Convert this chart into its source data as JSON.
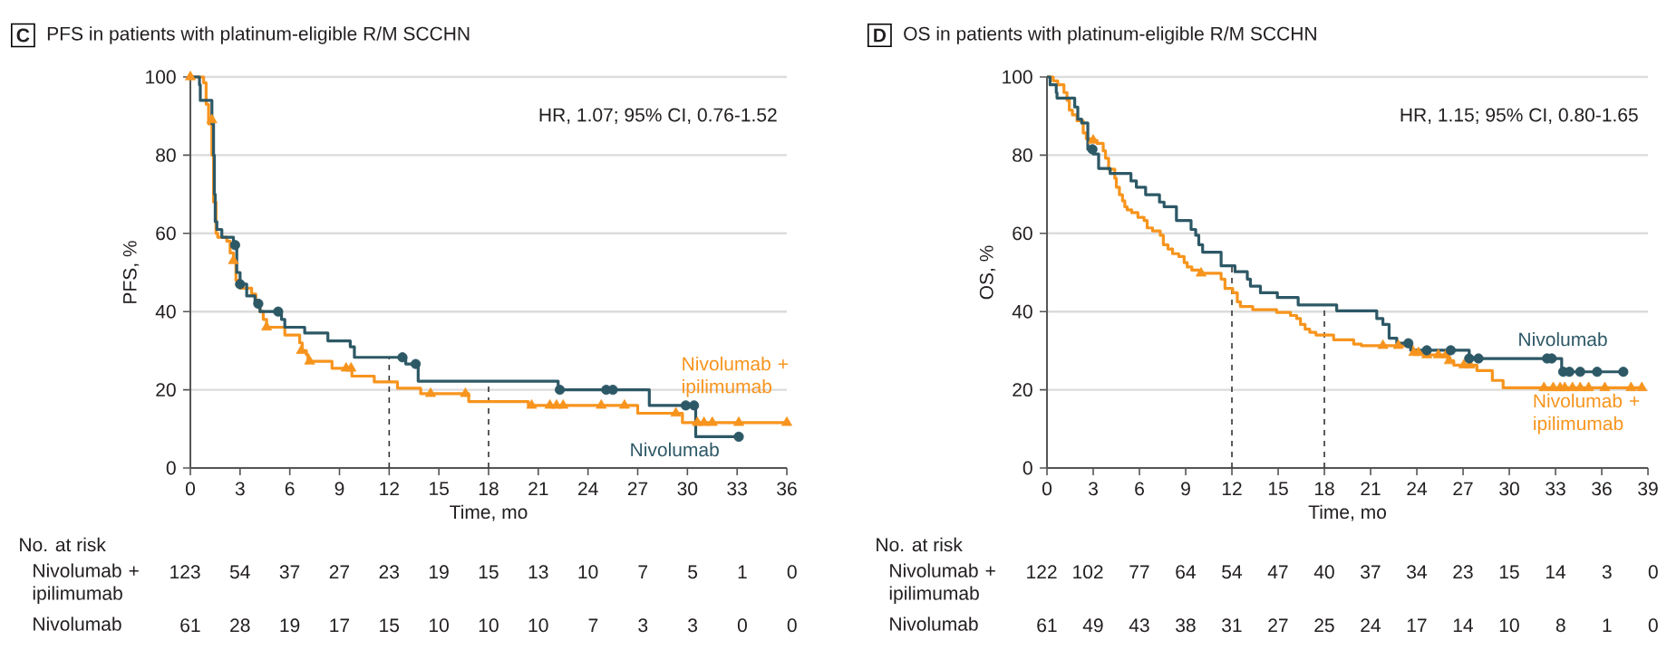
{
  "chart_data": [
    {
      "type": "step",
      "title": "PFS in patients with platinum-eligible R/M SCCHN",
      "xlabel": "Time, mo",
      "ylabel": "PFS, %",
      "xlim": [
        0,
        36
      ],
      "xticks": [
        0,
        3,
        6,
        9,
        12,
        15,
        18,
        21,
        24,
        27,
        30,
        33,
        36
      ],
      "ylim": [
        0,
        100
      ],
      "yticks": [
        0,
        20,
        40,
        60,
        80,
        100
      ],
      "grid": "y",
      "ref_lines": [
        {
          "axis": "x",
          "value": 12,
          "color": "#333333",
          "line_style": "dashed"
        },
        {
          "axis": "x",
          "value": 18,
          "color": "#333333",
          "line_style": "dashed"
        }
      ],
      "annotations": [
        "C",
        "HR, 1.07; 95% CI, 0.76-1.52",
        "No. at risk",
        "123",
        "54",
        "37",
        "27",
        "23",
        "19",
        "15",
        "13",
        "10",
        "7",
        "5",
        "1",
        "0",
        "61",
        "28",
        "19",
        "17",
        "15",
        "10",
        "10",
        "10",
        "7",
        "3",
        "3",
        "0",
        "0"
      ],
      "series": [
        {
          "name": "Nivolumab + ipilimumab",
          "color": "#f7941d",
          "x": [
            0,
            0.8,
            0.95,
            1.1,
            1.3,
            1.4,
            1.55,
            1.65,
            2.2,
            2.4,
            2.6,
            2.75,
            3.0,
            3.7,
            3.95,
            4.2,
            4.4,
            4.6,
            5.7,
            6.6,
            6.75,
            7.0,
            7.1,
            8.55,
            9.75,
            11.1,
            12.5,
            13.9,
            16.8,
            20.4,
            27.0,
            29.7,
            36
          ],
          "values": [
            100,
            98.5,
            93,
            88,
            80,
            68,
            60,
            59,
            58,
            55,
            53,
            48,
            46,
            44.5,
            42,
            40,
            38,
            36,
            34,
            32,
            30,
            29,
            27.3,
            25.5,
            23.5,
            22,
            20.4,
            19,
            17,
            16,
            14,
            11.6,
            11.6
          ]
        },
        {
          "name": "Nivolumab",
          "color": "#2d5866",
          "x": [
            0,
            0.55,
            0.6,
            1.3,
            1.4,
            1.45,
            1.5,
            1.6,
            1.9,
            2.6,
            2.8,
            3.0,
            3.4,
            3.9,
            4.2,
            5.5,
            5.7,
            6.9,
            8.3,
            9.65,
            9.9,
            13.0,
            13.75,
            22.2,
            27.7,
            30.5,
            33.1
          ],
          "values": [
            100,
            98,
            94,
            88,
            80,
            70,
            63,
            61,
            59,
            57,
            50,
            47,
            44,
            42,
            40,
            38,
            36,
            34.5,
            32.5,
            31,
            28.3,
            26.6,
            22.2,
            20,
            16,
            8,
            8
          ]
        },
        {
          "type": "scatter",
          "marker": "triangle",
          "color": "#f7941d",
          "x": [
            0,
            1.3,
            2.6,
            4.6,
            6.7,
            7.2,
            9.4,
            9.7,
            14.5,
            16.6,
            20.6,
            21.7,
            22.1,
            22.5,
            24.8,
            26.2,
            29.3,
            30.6,
            31.0,
            31.5,
            33.1,
            36.0
          ],
          "values": [
            100,
            89,
            53,
            36,
            30,
            27.3,
            25.5,
            25.5,
            19,
            19,
            16,
            16,
            16,
            16,
            16,
            16,
            14,
            11.6,
            11.6,
            11.6,
            11.6,
            11.6
          ]
        },
        {
          "type": "scatter",
          "marker": "circle",
          "color": "#2d5866",
          "x": [
            2.7,
            3.0,
            4.1,
            5.3,
            12.8,
            13.6,
            22.3,
            25.1,
            25.5,
            29.9,
            30.4,
            33.1
          ],
          "values": [
            57,
            47,
            42,
            40,
            28.3,
            26.6,
            20,
            20,
            20,
            16,
            16,
            8
          ]
        }
      ]
    },
    {
      "type": "step",
      "title": "OS in patients with platinum-eligible R/M SCCHN",
      "xlabel": "Time, mo",
      "ylabel": "OS, %",
      "xlim": [
        0,
        39
      ],
      "xticks": [
        0,
        3,
        6,
        9,
        12,
        15,
        18,
        21,
        24,
        27,
        30,
        33,
        36,
        39
      ],
      "ylim": [
        0,
        100
      ],
      "yticks": [
        0,
        20,
        40,
        60,
        80,
        100
      ],
      "grid": "y",
      "ref_lines": [
        {
          "axis": "x",
          "value": 12,
          "color": "#333333",
          "line_style": "dashed"
        },
        {
          "axis": "x",
          "value": 18,
          "color": "#333333",
          "line_style": "dashed"
        }
      ],
      "annotations": [
        "D",
        "HR, 1.15; 95% CI, 0.80-1.65",
        "No. at risk",
        "122",
        "102",
        "77",
        "64",
        "54",
        "47",
        "40",
        "37",
        "34",
        "23",
        "15",
        "14",
        "3",
        "0",
        "61",
        "49",
        "43",
        "38",
        "31",
        "27",
        "25",
        "24",
        "17",
        "14",
        "10",
        "8",
        "1",
        "0"
      ],
      "series": [
        {
          "name": "Nivolumab + ipilimumab",
          "color": "#f7941d",
          "x": [
            0,
            0.4,
            0.7,
            1.1,
            1.3,
            1.45,
            1.65,
            1.95,
            2.35,
            2.55,
            2.95,
            3.25,
            3.65,
            3.8,
            4.0,
            4.4,
            4.5,
            4.7,
            4.9,
            5.05,
            5.2,
            5.5,
            5.9,
            6.3,
            6.5,
            6.85,
            7.35,
            7.55,
            7.85,
            8.15,
            8.55,
            8.9,
            9.1,
            9.4,
            9.9,
            11.3,
            11.55,
            12.05,
            12.35,
            12.55,
            13.35,
            14.9,
            15.8,
            16.2,
            16.45,
            16.75,
            17.05,
            17.45,
            18.6,
            19.9,
            20.4,
            23.7,
            24.4,
            26.0,
            26.4,
            27.9,
            28.9,
            29.6,
            38.6
          ],
          "values": [
            100,
            99,
            98,
            96,
            94,
            91.5,
            90.3,
            88.8,
            85.7,
            84.2,
            83.8,
            83,
            81.1,
            79.2,
            76.4,
            74.1,
            71.8,
            69.9,
            68.3,
            66.8,
            66,
            65.3,
            64.1,
            63.3,
            61.4,
            60.6,
            59.5,
            57.1,
            56,
            54.8,
            54.1,
            52.5,
            51.4,
            50.6,
            49.8,
            48.3,
            45.9,
            44.8,
            42.5,
            41.3,
            40.5,
            39.8,
            39,
            38.2,
            36.7,
            35.5,
            34.7,
            34,
            32.8,
            31.7,
            31.3,
            29.5,
            28.9,
            27.4,
            26.3,
            24.9,
            22.4,
            20.5,
            20.5
          ]
        },
        {
          "name": "Nivolumab",
          "color": "#2d5866",
          "x": [
            0,
            0.2,
            0.6,
            0.65,
            1.8,
            2.0,
            2.25,
            2.65,
            3.0,
            3.35,
            4.1,
            5.45,
            5.8,
            6.4,
            7.3,
            7.6,
            8.4,
            9.35,
            9.65,
            9.85,
            10.1,
            11.3,
            12.2,
            13.0,
            13.2,
            13.85,
            14.95,
            16.3,
            18.8,
            21.4,
            21.8,
            22.2,
            22.7,
            23.6,
            27.4,
            33.4,
            37.4
          ],
          "values": [
            100,
            98,
            96,
            94.6,
            92.3,
            89.2,
            88.2,
            81.5,
            80.3,
            76.6,
            75.3,
            73.4,
            71.8,
            69.9,
            68,
            66.8,
            63.3,
            61,
            59.5,
            57.1,
            55.2,
            51.7,
            50.2,
            48.3,
            46.5,
            44.8,
            43.6,
            41.7,
            40.2,
            38.2,
            36.7,
            33.2,
            31.9,
            30.1,
            28,
            24.6,
            24.6
          ]
        },
        {
          "type": "scatter",
          "marker": "triangle",
          "color": "#f7941d",
          "x": [
            3.0,
            10.0,
            21.8,
            22.8,
            23.8,
            24.1,
            24.65,
            25.4,
            25.9,
            26.1,
            27.05,
            27.45,
            32.25,
            32.85,
            33.3,
            33.6,
            34.1,
            34.6,
            35.15,
            36.2,
            37.9,
            38.6
          ],
          "values": [
            83.8,
            49.8,
            31.3,
            31.3,
            29.5,
            29.5,
            28.9,
            28.9,
            28.9,
            27.4,
            26.3,
            26.3,
            20.5,
            20.5,
            20.5,
            20.5,
            20.5,
            20.5,
            20.5,
            20.5,
            20.5,
            20.5
          ]
        },
        {
          "type": "scatter",
          "marker": "circle",
          "color": "#2d5866",
          "x": [
            2.95,
            23.45,
            24.65,
            26.2,
            27.4,
            28.0,
            32.45,
            32.75,
            33.5,
            33.9,
            34.6,
            35.7,
            37.4
          ],
          "values": [
            81.5,
            31.9,
            30.1,
            30.1,
            28,
            28,
            28,
            28,
            24.6,
            24.6,
            24.6,
            24.6,
            24.6
          ]
        }
      ]
    }
  ]
}
